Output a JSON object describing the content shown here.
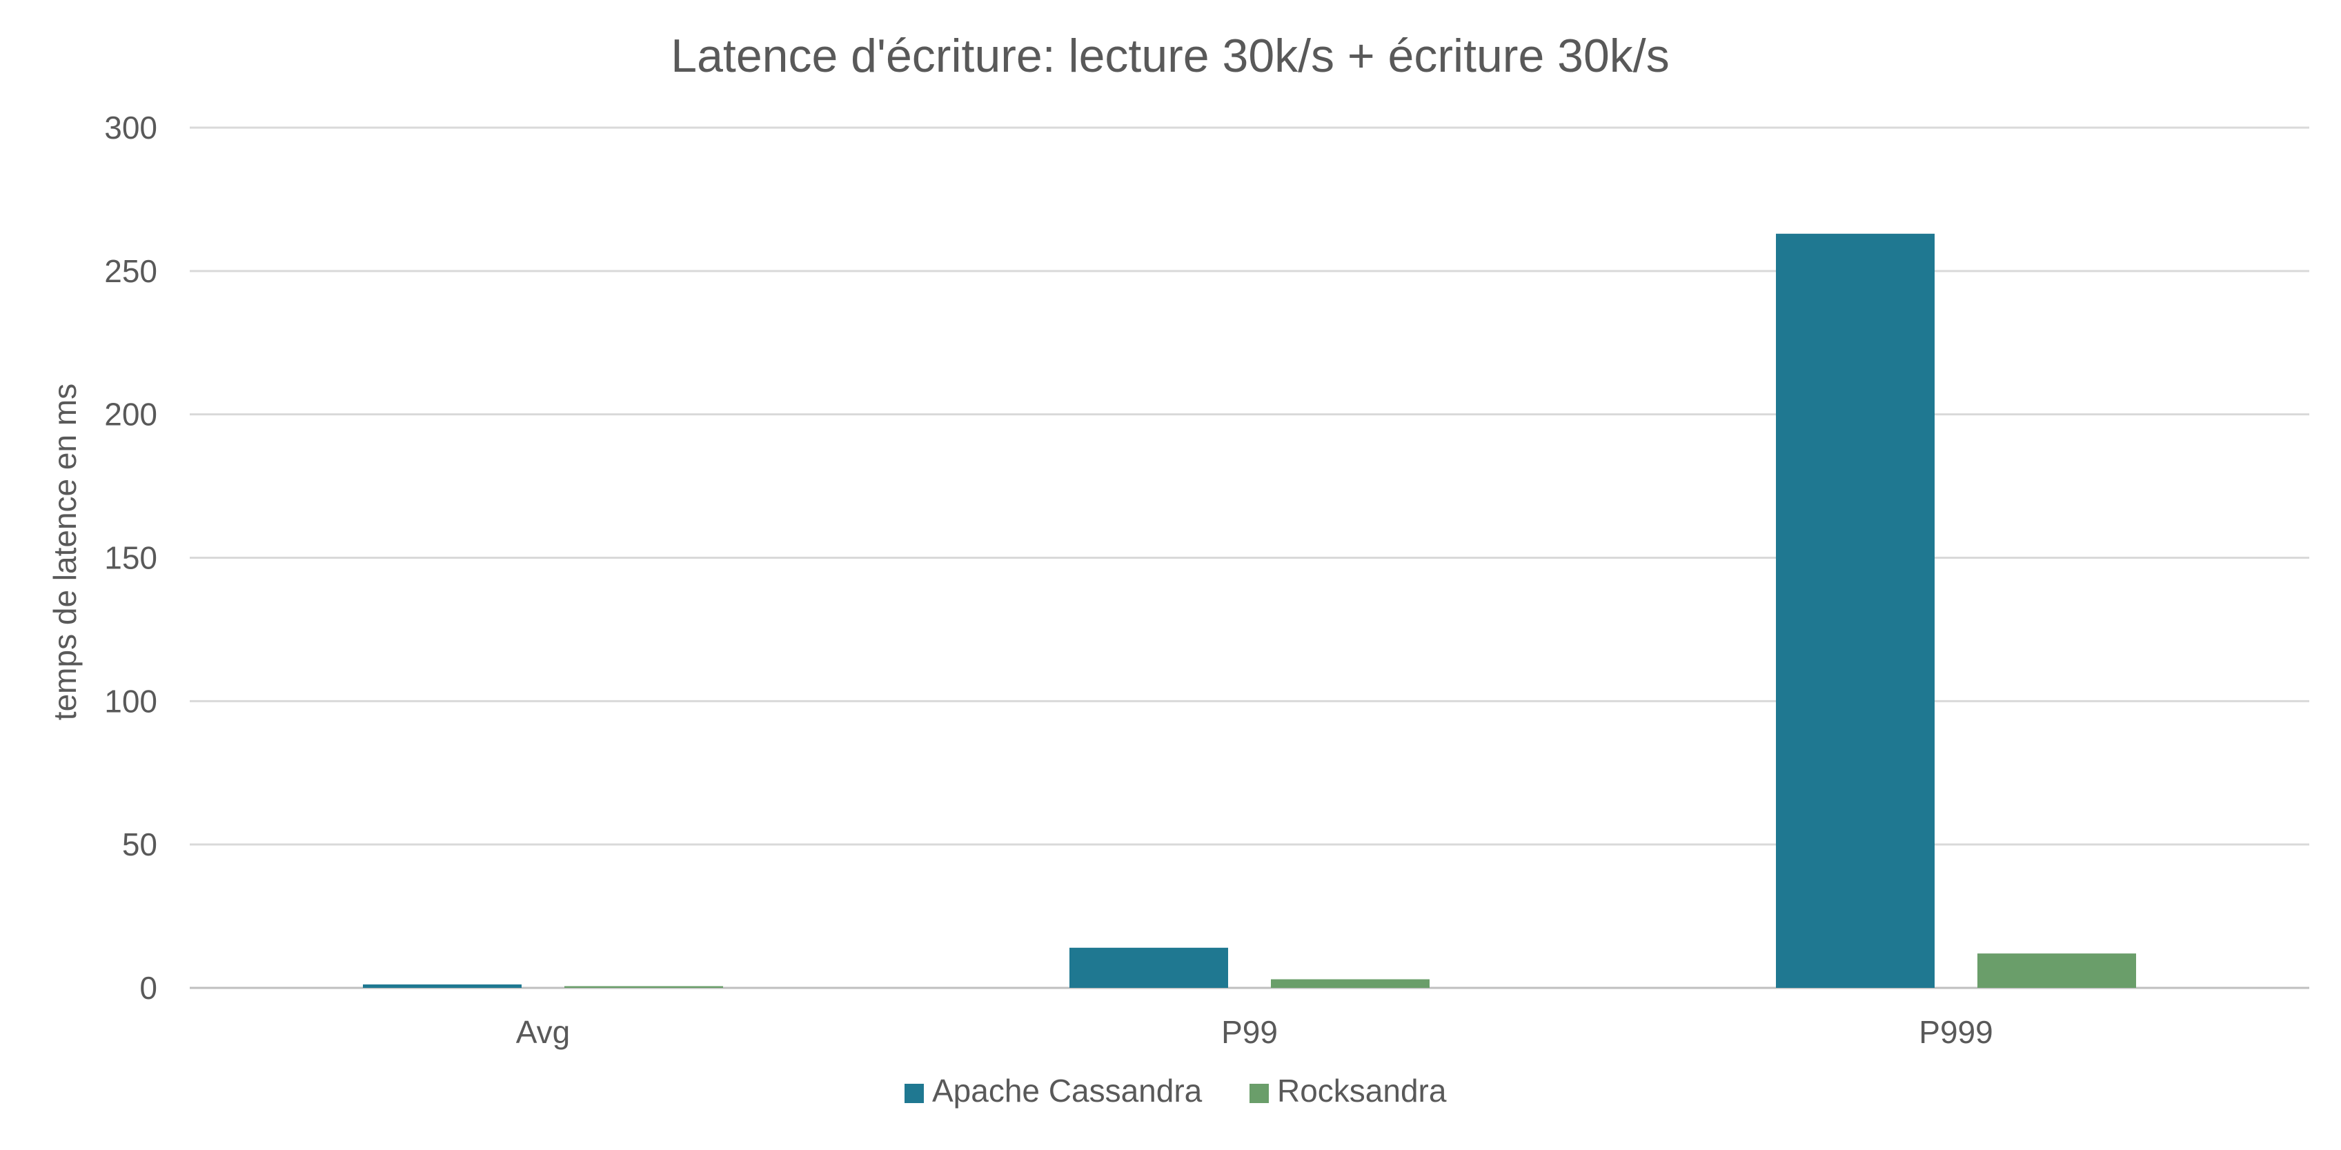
{
  "chart_data": {
    "type": "bar",
    "title": "Latence d'écriture: lecture 30k/s + écriture 30k/s",
    "xlabel": "",
    "ylabel": "temps de latence en ms",
    "categories": [
      "Avg",
      "P99",
      "P999"
    ],
    "series": [
      {
        "name": "Apache Cassandra",
        "color": "#1f7891",
        "values": [
          1.2,
          14,
          263
        ]
      },
      {
        "name": "Rocksandra",
        "color": "#6a9e6a",
        "values": [
          0.6,
          3,
          12
        ]
      }
    ],
    "ylim": [
      0,
      300
    ],
    "yticks": [
      0,
      50,
      100,
      150,
      200,
      250,
      300
    ],
    "grid": true,
    "legend_position": "bottom"
  }
}
